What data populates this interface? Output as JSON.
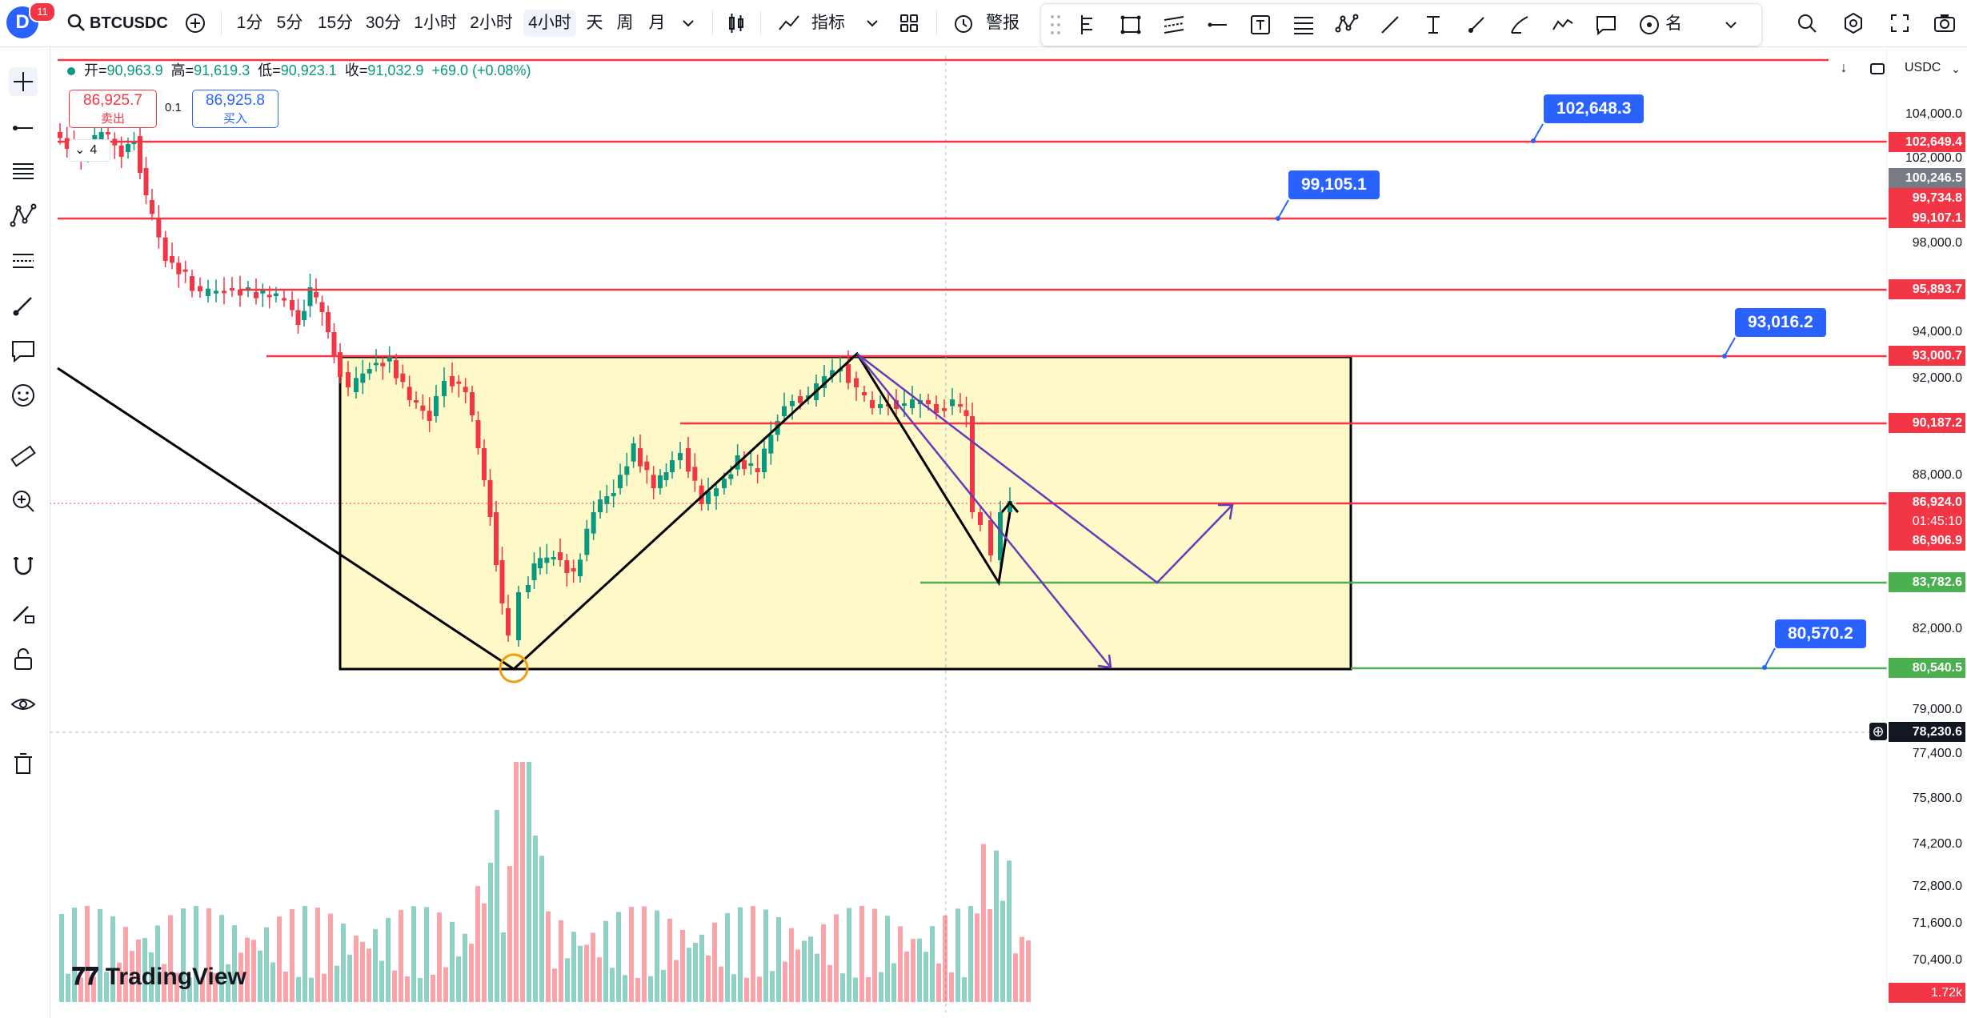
{
  "header": {
    "avatar_letter": "D",
    "notifications": "11",
    "symbol": "BTCUSDC",
    "intervals": [
      "1分",
      "5分",
      "15分",
      "30分",
      "1小时",
      "2小时",
      "4小时",
      "天",
      "周",
      "月"
    ],
    "active_interval": "4小时",
    "indicators_label": "指标",
    "alert_label": "警报",
    "name_label": "名",
    "currency": "USDC"
  },
  "ohlc": {
    "open_label": "开=",
    "open": "90,963.9",
    "high_label": "高=",
    "high": "91,619.3",
    "low_label": "低=",
    "low": "90,923.1",
    "close_label": "收=",
    "close": "91,032.9",
    "change": "+69.0 (+0.08%)"
  },
  "trade": {
    "sell_price": "86,925.7",
    "sell_label": "卖出",
    "spread": "0.1",
    "buy_price": "86,925.8",
    "buy_label": "买入",
    "quantity": "4"
  },
  "price_axis": {
    "ticks": [
      "104,000.0",
      "102,000.0",
      "98,000.0",
      "94,000.0",
      "92,000.0",
      "88,000.0",
      "82,000.0",
      "79,000.0",
      "77,400.0",
      "75,800.0",
      "74,200.0",
      "72,800.0",
      "71,600.0",
      "70,400.0"
    ],
    "tags": [
      {
        "value": "102,649.4",
        "color": "#f23645"
      },
      {
        "value": "100,246.5",
        "color": "#787b86"
      },
      {
        "value": "99,734.8",
        "color": "#f23645"
      },
      {
        "value": "99,107.1",
        "color": "#f23645"
      },
      {
        "value": "95,893.7",
        "color": "#f23645"
      },
      {
        "value": "93,000.7",
        "color": "#f23645"
      },
      {
        "value": "90,187.2",
        "color": "#f23645"
      },
      {
        "value": "86,924.0",
        "color": "#f23645"
      },
      {
        "value": "01:45:10",
        "color": "#f23645"
      },
      {
        "value": "86,906.9",
        "color": "#f23645"
      },
      {
        "value": "83,782.6",
        "color": "#4caf50"
      },
      {
        "value": "80,540.5",
        "color": "#4caf50"
      },
      {
        "value": "78,230.6",
        "color": "#131722"
      }
    ],
    "footer": "1.72k"
  },
  "callouts": [
    "102,648.3",
    "99,105.1",
    "93,016.2",
    "80,570.2"
  ],
  "brand": "TradingView",
  "colors": {
    "up": "#089981",
    "down": "#f23645",
    "box_fill": "#fff8c9",
    "red_line": "#f23645",
    "green_line": "#4caf50",
    "purple": "#673ab7",
    "accent": "#2962ff"
  }
}
